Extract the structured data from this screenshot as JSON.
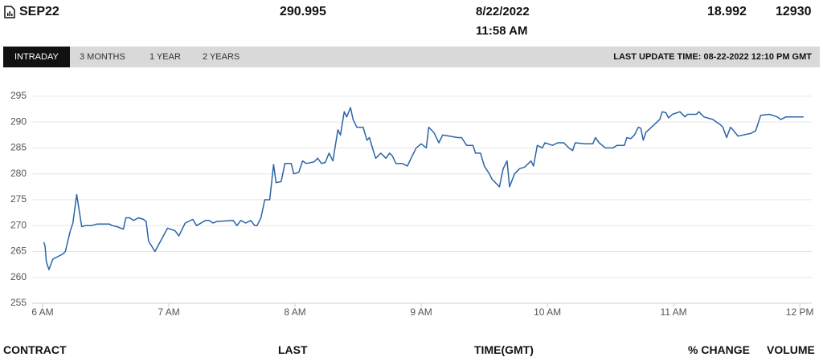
{
  "quote": {
    "contract": "SEP22",
    "last": "290.995",
    "date": "8/22/2022",
    "time": "11:58 AM",
    "change": "18.992",
    "volume": "12930"
  },
  "tabs": [
    "INTRADAY",
    "3 MONTHS",
    "1 YEAR",
    "2 YEARS"
  ],
  "last_update": "LAST UPDATE TIME: 08-22-2022 12:10 PM GMT",
  "footer": [
    "CONTRACT",
    "LAST",
    "TIME(GMT)",
    "% CHANGE",
    "VOLUME"
  ],
  "chart_data": {
    "type": "line",
    "color": "#2a64a8",
    "grid": true,
    "xlim": [
      6,
      12.05
    ],
    "xticks": [
      {
        "value": 6,
        "label": "6 AM"
      },
      {
        "value": 7,
        "label": "7 AM"
      },
      {
        "value": 8,
        "label": "8 AM"
      },
      {
        "value": 9,
        "label": "9 AM"
      },
      {
        "value": 10,
        "label": "10 AM"
      },
      {
        "value": 11,
        "label": "11 AM"
      },
      {
        "value": 12,
        "label": "12 PM"
      }
    ],
    "ylim": [
      255,
      297
    ],
    "yticks": [
      255,
      260,
      265,
      270,
      275,
      280,
      285,
      290,
      295
    ],
    "x": [
      6.01,
      6.02,
      6.03,
      6.05,
      6.08,
      6.12,
      6.16,
      6.18,
      6.22,
      6.24,
      6.27,
      6.31,
      6.34,
      6.39,
      6.43,
      6.53,
      6.55,
      6.59,
      6.64,
      6.66,
      6.69,
      6.72,
      6.76,
      6.8,
      6.82,
      6.84,
      6.89,
      6.99,
      7.05,
      7.08,
      7.1,
      7.13,
      7.19,
      7.22,
      7.29,
      7.32,
      7.35,
      7.38,
      7.51,
      7.54,
      7.57,
      7.61,
      7.65,
      7.68,
      7.7,
      7.73,
      7.76,
      7.8,
      7.83,
      7.85,
      7.89,
      7.92,
      7.97,
      7.99,
      8.03,
      8.06,
      8.09,
      8.15,
      8.18,
      8.21,
      8.24,
      8.27,
      8.3,
      8.34,
      8.36,
      8.39,
      8.41,
      8.44,
      8.46,
      8.49,
      8.54,
      8.57,
      8.59,
      8.62,
      8.64,
      8.68,
      8.72,
      8.75,
      8.77,
      8.8,
      8.85,
      8.89,
      8.92,
      8.96,
      9.0,
      9.04,
      9.06,
      9.1,
      9.14,
      9.17,
      9.29,
      9.32,
      9.36,
      9.41,
      9.43,
      9.47,
      9.5,
      9.54,
      9.56,
      9.6,
      9.62,
      9.65,
      9.68,
      9.7,
      9.74,
      9.78,
      9.82,
      9.87,
      9.89,
      9.92,
      9.96,
      9.98,
      10.04,
      10.08,
      10.13,
      10.17,
      10.2,
      10.22,
      10.3,
      10.36,
      10.38,
      10.41,
      10.46,
      10.52,
      10.55,
      10.61,
      10.63,
      10.66,
      10.69,
      10.72,
      10.74,
      10.76,
      10.78,
      10.89,
      10.91,
      10.94,
      10.96,
      10.99,
      11.05,
      11.09,
      11.11,
      11.18,
      11.2,
      11.24,
      11.31,
      11.37,
      11.39,
      11.42,
      11.45,
      11.47,
      11.51,
      11.55,
      11.61,
      11.65,
      11.69,
      11.76,
      11.82,
      11.85,
      11.89,
      12.03
    ],
    "values": [
      266.8,
      266,
      263,
      261.5,
      263.5,
      264,
      264.5,
      265,
      269,
      270.5,
      276,
      269.8,
      270,
      270,
      270.3,
      270.3,
      270,
      269.8,
      269.3,
      271.5,
      271.5,
      271,
      271.5,
      271.2,
      270.8,
      267,
      265,
      269.5,
      269,
      268,
      269,
      270.5,
      271.2,
      270,
      271,
      271,
      270.5,
      270.8,
      271,
      270,
      271,
      270.5,
      271,
      270,
      270,
      271.5,
      275,
      275,
      281.8,
      278.3,
      278.5,
      282,
      282,
      280,
      280.3,
      282.5,
      282,
      282.3,
      283,
      282,
      282.2,
      284,
      282.5,
      288.5,
      287.5,
      292,
      291,
      292.8,
      290.5,
      289,
      289,
      286.5,
      287,
      284.5,
      283,
      284,
      283,
      284,
      283.5,
      282,
      282,
      281.5,
      283,
      285,
      285.8,
      285,
      289,
      288,
      286,
      287.5,
      287,
      287,
      285.5,
      285.5,
      284,
      284,
      281.5,
      280,
      279,
      278,
      277.5,
      281,
      282.5,
      277.5,
      280,
      281,
      281.3,
      282.5,
      281.5,
      285.5,
      285,
      286,
      285.5,
      286,
      286,
      285,
      284.5,
      286,
      285.8,
      285.8,
      287,
      286,
      285,
      285,
      285.5,
      285.5,
      287,
      286.8,
      287.5,
      289,
      288.8,
      286.5,
      288,
      290.5,
      292,
      291.8,
      290.8,
      291.5,
      292,
      291,
      291.5,
      291.5,
      292,
      291,
      290.5,
      289.5,
      289,
      287,
      289,
      288.5,
      287.3,
      287.5,
      287.8,
      288.3,
      291.3,
      291.5,
      291,
      290.5,
      291,
      291
    ]
  }
}
